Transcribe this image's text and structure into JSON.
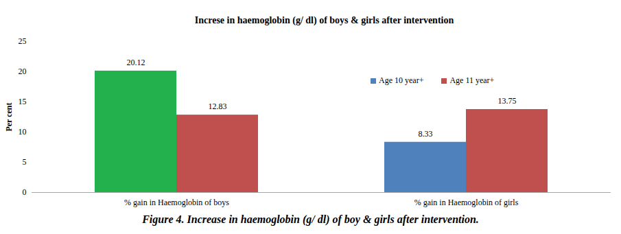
{
  "chart_data": {
    "type": "bar",
    "title": "Increse in haemoglobin (g/ dl) of boys & girls after intervention",
    "caption": "Figure 4. Increase in haemoglobin (g/ dl) of boy & girls after intervention.",
    "y_label": "Per cent",
    "categories": [
      "% gain in Haemoglobin of boys",
      "% gain in Haemoglobin of girls"
    ],
    "series": [
      {
        "name": "Age 10 year+",
        "color": "#4f81bd",
        "colors": [
          "#22b14c",
          "#4f81bd"
        ],
        "values": [
          20.12,
          8.33
        ]
      },
      {
        "name": "Age 11 year+",
        "color": "#c0504d",
        "values": [
          12.83,
          13.75
        ]
      }
    ],
    "ylim": [
      0,
      25
    ],
    "yticks": [
      0,
      5,
      10,
      15,
      20,
      25
    ],
    "grid": false,
    "legend": "top-right",
    "data_labels": true
  }
}
